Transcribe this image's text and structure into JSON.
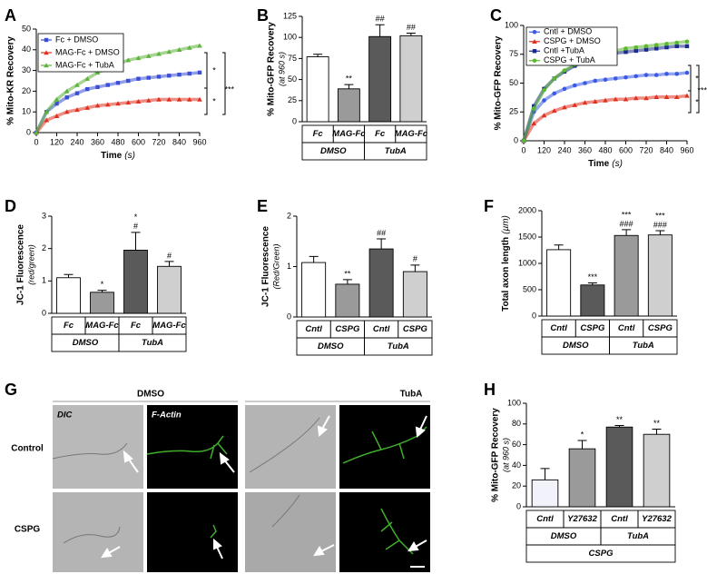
{
  "chart_data": [
    {
      "type": "line",
      "panel": "A",
      "ylabel": "% Mito-KR Recovery",
      "xlabel": "Time",
      "xlabel_unit": "(s)",
      "x": [
        0,
        60,
        120,
        180,
        240,
        300,
        360,
        420,
        480,
        540,
        600,
        660,
        720,
        780,
        840,
        900,
        960
      ],
      "xlim": [
        0,
        960
      ],
      "xticks": [
        0,
        120,
        240,
        360,
        480,
        600,
        720,
        840,
        960
      ],
      "ylim": [
        0,
        50
      ],
      "yticks": [
        0,
        10,
        20,
        30,
        40,
        50
      ],
      "series": [
        {
          "name": "Fc + DMSO",
          "color": "#3a4fd6",
          "marker": "square",
          "values": [
            0,
            10,
            14,
            17,
            19,
            21,
            22,
            23,
            24,
            25,
            26,
            26.5,
            27,
            27.5,
            28,
            28.5,
            29
          ]
        },
        {
          "name": "MAG-Fc + DMSO",
          "color": "#e0301e",
          "marker": "triangle",
          "values": [
            0,
            6,
            8,
            10,
            11,
            12,
            13,
            13.5,
            14,
            14.5,
            15,
            15.5,
            16,
            16,
            16,
            16,
            16
          ]
        },
        {
          "name": "MAG-Fc + TubA",
          "color": "#5db33b",
          "marker": "triangle",
          "values": [
            0,
            10,
            16,
            20,
            23,
            26,
            29,
            31,
            33,
            35,
            36,
            37,
            38,
            39,
            40,
            41,
            42
          ]
        }
      ],
      "legend": "upper left",
      "significance": [
        "*",
        "*",
        "***"
      ]
    },
    {
      "type": "bar",
      "panel": "B",
      "ylabel": "% Mito-GFP Recovery",
      "ylabel_sub": "(at 960 s)",
      "categories": [
        "Fc",
        "MAG-Fc",
        "Fc",
        "MAG-Fc"
      ],
      "groups": [
        "DMSO",
        "TubA"
      ],
      "values": [
        77,
        39,
        101,
        102
      ],
      "errors": [
        3,
        5,
        14,
        3
      ],
      "colors": [
        "#ffffff",
        "#9a9a9a",
        "#5a5a5a",
        "#cfcfcf"
      ],
      "annotations": [
        [],
        [
          "**"
        ],
        [
          "##"
        ],
        [
          "##"
        ]
      ],
      "ylim": [
        0,
        125
      ],
      "yticks": [
        0,
        25,
        50,
        75,
        100,
        125
      ]
    },
    {
      "type": "line",
      "panel": "C",
      "ylabel": "% Mito-GFP Recovery",
      "xlabel": "Time",
      "xlabel_unit": "(s)",
      "x": [
        0,
        60,
        120,
        180,
        240,
        300,
        360,
        420,
        480,
        540,
        600,
        660,
        720,
        780,
        840,
        900,
        960
      ],
      "xlim": [
        0,
        960
      ],
      "xticks": [
        0,
        120,
        240,
        360,
        480,
        600,
        720,
        840,
        960
      ],
      "ylim": [
        0,
        100
      ],
      "yticks": [
        0,
        25,
        50,
        75,
        100
      ],
      "series": [
        {
          "name": "Cntl + DMSO",
          "color": "#3a5ae6",
          "marker": "circle",
          "values": [
            0,
            25,
            35,
            41,
            45,
            48,
            50,
            52,
            53,
            54,
            55,
            56,
            57,
            57,
            58,
            58,
            59
          ]
        },
        {
          "name": "CSPG + DMSO",
          "color": "#e0301e",
          "marker": "triangle",
          "values": [
            0,
            15,
            22,
            26,
            29,
            31,
            33,
            34,
            35,
            36,
            36,
            37,
            37,
            38,
            38,
            38,
            39
          ]
        },
        {
          "name": "Cntl +TubA",
          "color": "#1a2a8c",
          "marker": "square",
          "values": [
            0,
            30,
            45,
            54,
            60,
            65,
            69,
            72,
            74,
            76,
            77,
            78,
            79,
            80,
            81,
            82,
            82
          ]
        },
        {
          "name": "CSPG + TubA",
          "color": "#5cb82f",
          "marker": "circle",
          "values": [
            0,
            28,
            44,
            54,
            61,
            66,
            70,
            73,
            76,
            78,
            80,
            81,
            82,
            83,
            84,
            85,
            86
          ]
        }
      ],
      "legend": "upper left",
      "significance": [
        "*",
        "*",
        "***"
      ]
    },
    {
      "type": "bar",
      "panel": "D",
      "ylabel": "JC-1 Fluorescence",
      "ylabel_sub": "(red/green)",
      "categories": [
        "Fc",
        "MAG-Fc",
        "Fc",
        "MAG-Fc"
      ],
      "groups": [
        "DMSO",
        "TubA"
      ],
      "values": [
        1.1,
        0.65,
        1.95,
        1.45
      ],
      "errors": [
        0.1,
        0.06,
        0.55,
        0.15
      ],
      "colors": [
        "#ffffff",
        "#9a9a9a",
        "#5a5a5a",
        "#cfcfcf"
      ],
      "annotations": [
        [],
        [
          "*"
        ],
        [
          "*",
          "#"
        ],
        [
          "#"
        ]
      ],
      "ylim": [
        0,
        3
      ],
      "yticks": [
        0,
        1,
        2,
        3
      ]
    },
    {
      "type": "bar",
      "panel": "E",
      "ylabel": "JC-1 Fluorescence",
      "ylabel_sub": "(Red/Green)",
      "categories": [
        "Cntl",
        "CSPG",
        "Cntl",
        "CSPG"
      ],
      "groups": [
        "DMSO",
        "TubA"
      ],
      "values": [
        1.08,
        0.65,
        1.35,
        0.9
      ],
      "errors": [
        0.12,
        0.09,
        0.2,
        0.13
      ],
      "colors": [
        "#ffffff",
        "#9a9a9a",
        "#5a5a5a",
        "#cfcfcf"
      ],
      "annotations": [
        [],
        [
          "**"
        ],
        [
          "##"
        ],
        [
          "#"
        ]
      ],
      "ylim": [
        0,
        2
      ],
      "yticks": [
        0,
        1,
        2
      ]
    },
    {
      "type": "bar",
      "panel": "F",
      "ylabel": "Total axon length",
      "ylabel_sub": "(µm)",
      "categories": [
        "Cntl",
        "CSPG",
        "Cntl",
        "CSPG"
      ],
      "groups": [
        "DMSO",
        "TubA"
      ],
      "values": [
        1260,
        590,
        1530,
        1540
      ],
      "errors": [
        90,
        40,
        110,
        80
      ],
      "colors": [
        "#ffffff",
        "#5a5a5a",
        "#9a9a9a",
        "#cfcfcf"
      ],
      "annotations": [
        [],
        [
          "***"
        ],
        [
          "***",
          "###"
        ],
        [
          "***",
          "###"
        ]
      ],
      "ylim": [
        0,
        2000
      ],
      "yticks": [
        0,
        500,
        1000,
        1500,
        2000
      ]
    },
    {
      "type": "bar",
      "panel": "H",
      "ylabel": "% Mito-GFP Recovery",
      "ylabel_sub": "(at 960 s)",
      "categories": [
        "Cntl",
        "Y27632",
        "Cntl",
        "Y27632"
      ],
      "groups": [
        "DMSO",
        "TubA"
      ],
      "supergroup": "CSPG",
      "values": [
        26,
        56,
        77,
        70
      ],
      "errors": [
        11,
        8,
        1.5,
        5
      ],
      "colors": [
        "#f2f2fa",
        "#9a9a9a",
        "#5a5a5a",
        "#cfcfcf"
      ],
      "annotations": [
        [],
        [
          "*"
        ],
        [
          "**"
        ],
        [
          "**"
        ]
      ],
      "ylim": [
        0,
        100
      ],
      "yticks": [
        0,
        20,
        40,
        60,
        80,
        100
      ]
    }
  ],
  "micrograph": {
    "panel": "G",
    "columns": [
      "DMSO",
      "TubA"
    ],
    "rows": [
      "Control",
      "CSPG"
    ],
    "channels": [
      "DIC",
      "F-Actin"
    ]
  }
}
